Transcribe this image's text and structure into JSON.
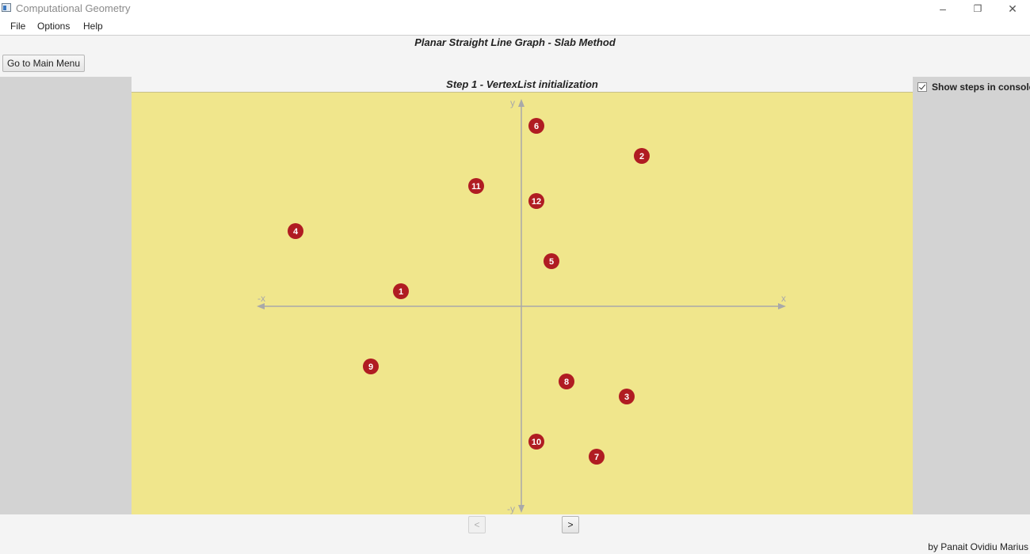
{
  "window": {
    "title": "Computational Geometry",
    "controls": {
      "minimize": "–",
      "restore": "❐",
      "close": "✕"
    }
  },
  "menu": [
    "File",
    "Options",
    "Help"
  ],
  "page_title": "Planar Straight Line Graph - Slab Method",
  "main_menu_button": "Go to Main Menu",
  "step_title": "Step 1 - VertexList initialization",
  "show_steps_label": "Show steps in console",
  "show_steps_checked": true,
  "axes": {
    "x_pos": "x",
    "x_neg": "-x",
    "y_pos": "y",
    "y_neg": "-y"
  },
  "vertices": [
    {
      "id": "1",
      "x": -4,
      "y": 1
    },
    {
      "id": "2",
      "x": 4,
      "y": 10
    },
    {
      "id": "3",
      "x": 3.5,
      "y": -6
    },
    {
      "id": "4",
      "x": -7.5,
      "y": 5
    },
    {
      "id": "5",
      "x": 1,
      "y": 3
    },
    {
      "id": "6",
      "x": 0.5,
      "y": 12
    },
    {
      "id": "7",
      "x": 2.5,
      "y": -10
    },
    {
      "id": "8",
      "x": 1.5,
      "y": -5
    },
    {
      "id": "9",
      "x": -5,
      "y": -4
    },
    {
      "id": "10",
      "x": 0.5,
      "y": -9
    },
    {
      "id": "11",
      "x": -1.5,
      "y": 8
    },
    {
      "id": "12",
      "x": 0.5,
      "y": 7
    }
  ],
  "nav": {
    "prev": "<",
    "next": ">",
    "prev_enabled": false
  },
  "credit": "by Panait Ovidiu Marius",
  "colors": {
    "canvas": "#f0e68c",
    "vertex": "#b01c22",
    "axis": "#a9a9a9"
  }
}
